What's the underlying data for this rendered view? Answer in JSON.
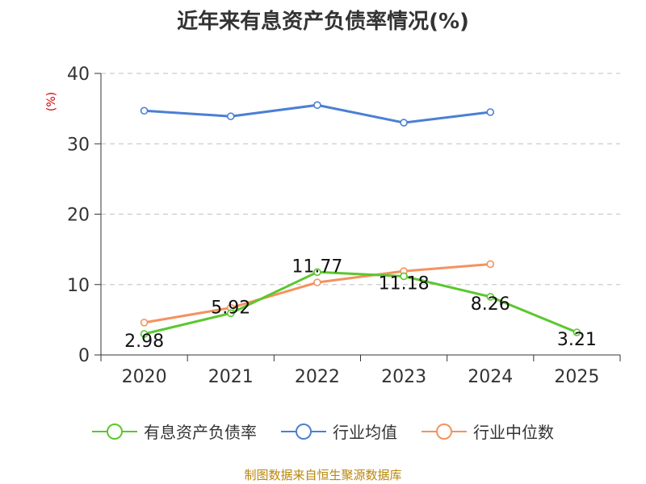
{
  "chart_data": {
    "type": "line",
    "title": "近年来有息资产负债率情况(%)",
    "ylabel": "(%)",
    "xlabel": "",
    "categories": [
      "2020",
      "2021",
      "2022",
      "2023",
      "2024",
      "2025"
    ],
    "ylim": [
      0,
      40
    ],
    "yticks": [
      0,
      10,
      20,
      30,
      40
    ],
    "grid": true,
    "legend_position": "bottom",
    "series": [
      {
        "name": "有息资产负债率",
        "color": "#5bc72e",
        "values": [
          2.98,
          5.92,
          11.77,
          11.18,
          8.26,
          3.21
        ],
        "labels": [
          "2.98",
          "5.92",
          "11.77",
          "11.18",
          "8.26",
          "3.21"
        ]
      },
      {
        "name": "行业均值",
        "color": "#4a7fd4",
        "values": [
          34.7,
          33.9,
          35.5,
          33.0,
          34.5,
          null
        ],
        "labels": null
      },
      {
        "name": "行业中位数",
        "color": "#f4925f",
        "values": [
          4.6,
          6.7,
          10.3,
          11.9,
          12.9,
          null
        ],
        "labels": null
      }
    ],
    "source": "制图数据来自恒生聚源数据库"
  }
}
